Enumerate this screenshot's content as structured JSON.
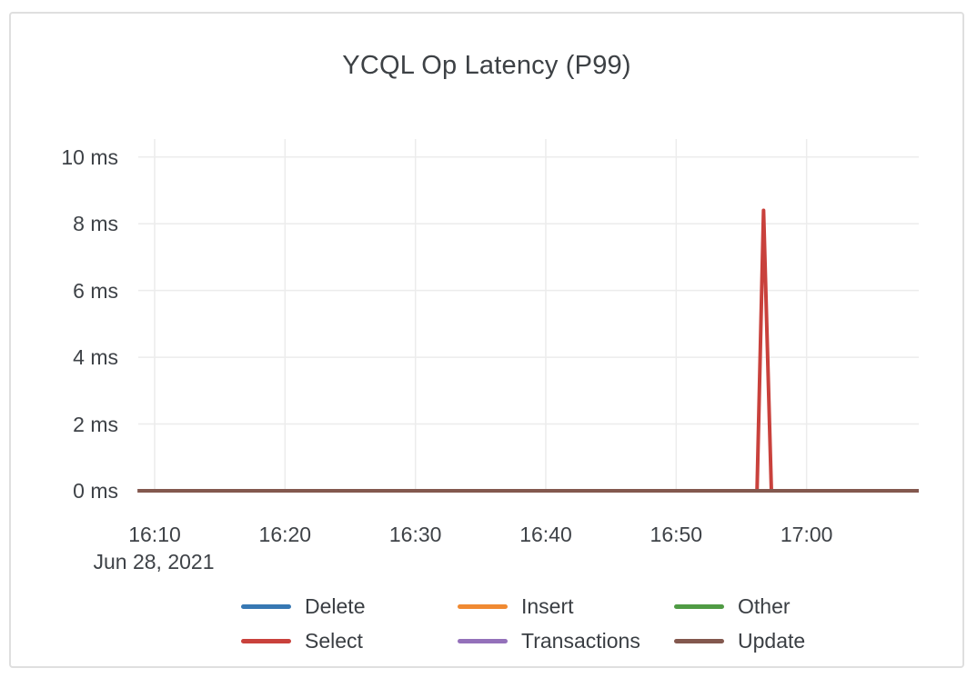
{
  "chart_data": {
    "type": "line",
    "title": "YCQL Op Latency (P99)",
    "grid": true,
    "legend_position": "bottom",
    "x_unit": "minutes_after_16:00",
    "x_axis": {
      "date_label": "Jun 28, 2021",
      "range": [
        8.7,
        68.6
      ],
      "ticks": [
        {
          "t": 10,
          "label": "16:10"
        },
        {
          "t": 20,
          "label": "16:20"
        },
        {
          "t": 30,
          "label": "16:30"
        },
        {
          "t": 40,
          "label": "16:40"
        },
        {
          "t": 50,
          "label": "16:50"
        },
        {
          "t": 60,
          "label": "17:00"
        }
      ]
    },
    "y_axis": {
      "unit": "ms",
      "range": [
        0,
        10.5
      ],
      "ticks": [
        {
          "v": 0,
          "label": "0 ms"
        },
        {
          "v": 2,
          "label": "2 ms"
        },
        {
          "v": 4,
          "label": "4 ms"
        },
        {
          "v": 6,
          "label": "6 ms"
        },
        {
          "v": 8,
          "label": "8 ms"
        },
        {
          "v": 10,
          "label": "10 ms"
        }
      ]
    },
    "series": [
      {
        "name": "Delete",
        "color": "#3778b3",
        "points": [
          [
            8.7,
            0
          ],
          [
            68.6,
            0
          ]
        ]
      },
      {
        "name": "Insert",
        "color": "#f08a32",
        "points": [
          [
            8.7,
            0
          ],
          [
            68.6,
            0
          ]
        ]
      },
      {
        "name": "Other",
        "color": "#4f9b44",
        "points": [
          [
            8.7,
            0
          ],
          [
            68.6,
            0
          ]
        ]
      },
      {
        "name": "Select",
        "color": "#c9413c",
        "points": [
          [
            8.7,
            0
          ],
          [
            56.2,
            0
          ],
          [
            56.7,
            8.4
          ],
          [
            57.3,
            0
          ],
          [
            68.6,
            0
          ]
        ]
      },
      {
        "name": "Transactions",
        "color": "#9471ba",
        "points": [
          [
            8.7,
            0
          ],
          [
            68.6,
            0
          ]
        ]
      },
      {
        "name": "Update",
        "color": "#83584e",
        "points": [
          [
            8.7,
            0
          ],
          [
            68.6,
            0
          ]
        ]
      }
    ],
    "gridline_color": "#ececec"
  }
}
